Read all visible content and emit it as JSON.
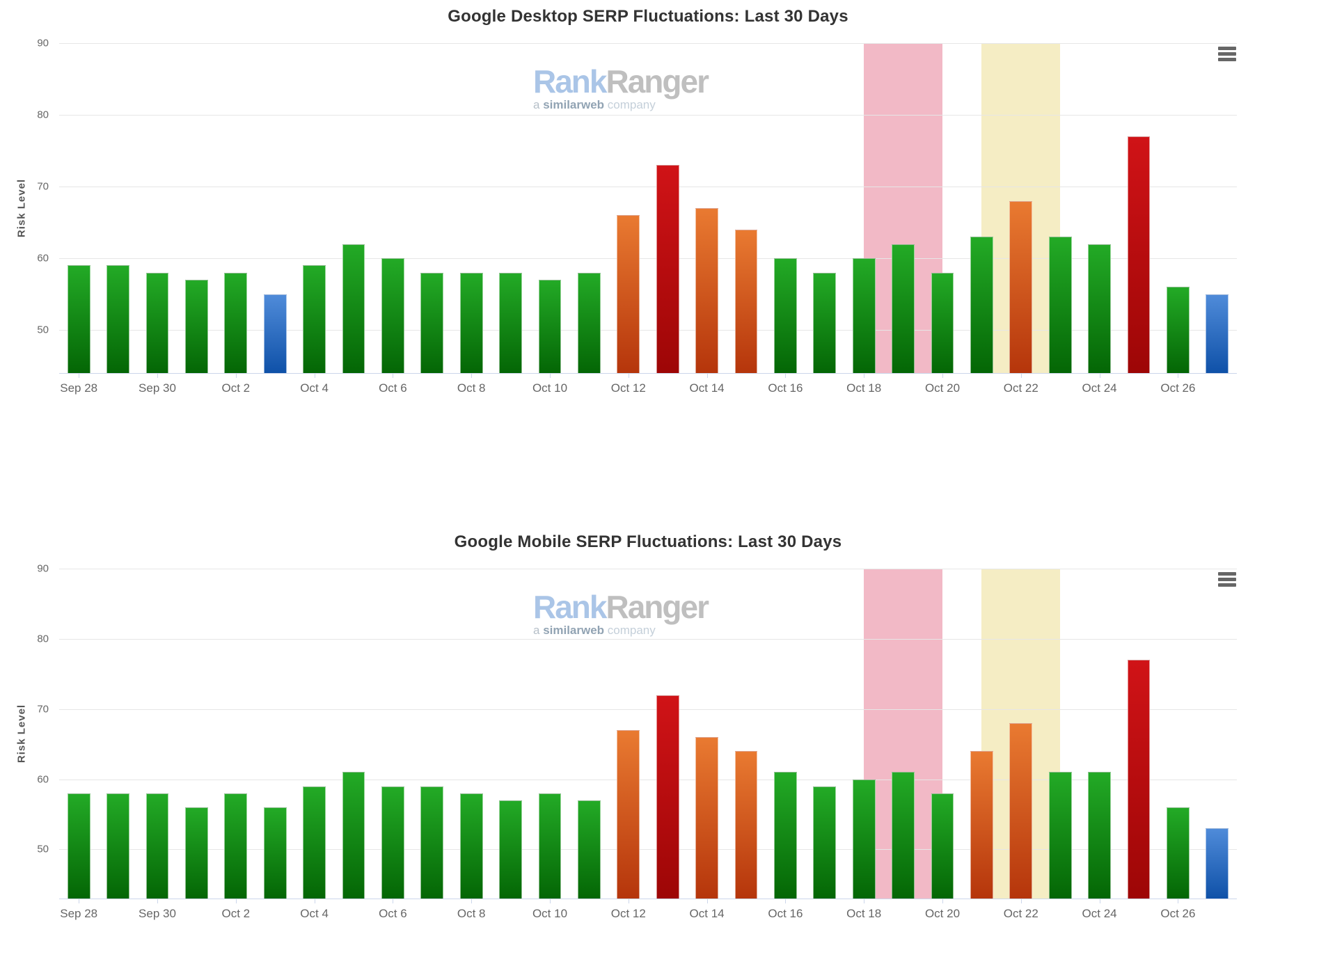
{
  "page": {
    "background": "#ffffff"
  },
  "watermark": {
    "brand_part1": "Rank",
    "brand_part2": "Ranger",
    "tagline_prefix": "a ",
    "tagline_brand": "similarweb",
    "tagline_suffix": " company"
  },
  "icons": {
    "context_menu": "hamburger-menu"
  },
  "colors": {
    "title": "#333333",
    "tick_label": "#666666",
    "axis_line": "#ccd6eb",
    "gridline": "#e6e6e6",
    "bands": {
      "pink": "#f2b9c6",
      "yellow": "#f5edc4"
    },
    "bars": {
      "green": {
        "top": "#23aa26",
        "bottom": "#046605"
      },
      "orange": {
        "top": "#e97a31",
        "bottom": "#b5350b"
      },
      "red": {
        "top": "#d01317",
        "bottom": "#9d0606"
      },
      "blue": {
        "top": "#4f8bd9",
        "bottom": "#0f51a8"
      }
    }
  },
  "chart_data": [
    {
      "type": "bar",
      "title": "Google Desktop SERP Fluctuations: Last 30 Days",
      "xlabel": "",
      "ylabel": "Risk Level",
      "ylim": [
        44,
        90
      ],
      "yticks": [
        50,
        60,
        70,
        80,
        90
      ],
      "grid": true,
      "legend": "none",
      "x_label_every": 2,
      "categories": [
        "Sep 28",
        "Sep 29",
        "Sep 30",
        "Oct 1",
        "Oct 2",
        "Oct 3",
        "Oct 4",
        "Oct 5",
        "Oct 6",
        "Oct 7",
        "Oct 8",
        "Oct 9",
        "Oct 10",
        "Oct 11",
        "Oct 12",
        "Oct 13",
        "Oct 14",
        "Oct 15",
        "Oct 16",
        "Oct 17",
        "Oct 18",
        "Oct 19",
        "Oct 20",
        "Oct 21",
        "Oct 22",
        "Oct 23",
        "Oct 24",
        "Oct 25",
        "Oct 26",
        "Oct 27"
      ],
      "values": [
        59,
        59,
        58,
        57,
        58,
        55,
        59,
        62,
        60,
        58,
        58,
        58,
        57,
        58,
        66,
        73,
        67,
        64,
        60,
        58,
        60,
        62,
        58,
        63,
        68,
        63,
        62,
        77,
        56,
        55
      ],
      "point_colors": [
        "green",
        "green",
        "green",
        "green",
        "green",
        "blue",
        "green",
        "green",
        "green",
        "green",
        "green",
        "green",
        "green",
        "green",
        "orange",
        "red",
        "orange",
        "orange",
        "green",
        "green",
        "green",
        "green",
        "green",
        "green",
        "orange",
        "green",
        "green",
        "red",
        "green",
        "blue"
      ],
      "plot_bands": [
        {
          "name": "pink-band",
          "color": "pink",
          "from": 20.5,
          "to": 22.5
        },
        {
          "name": "yellow-band",
          "color": "yellow",
          "from": 23.5,
          "to": 25.5
        }
      ]
    },
    {
      "type": "bar",
      "title": "Google Mobile SERP Fluctuations: Last 30 Days",
      "xlabel": "",
      "ylabel": "Risk Level",
      "ylim": [
        43,
        90
      ],
      "yticks": [
        50,
        60,
        70,
        80,
        90
      ],
      "grid": true,
      "legend": "none",
      "x_label_every": 2,
      "categories": [
        "Sep 28",
        "Sep 29",
        "Sep 30",
        "Oct 1",
        "Oct 2",
        "Oct 3",
        "Oct 4",
        "Oct 5",
        "Oct 6",
        "Oct 7",
        "Oct 8",
        "Oct 9",
        "Oct 10",
        "Oct 11",
        "Oct 12",
        "Oct 13",
        "Oct 14",
        "Oct 15",
        "Oct 16",
        "Oct 17",
        "Oct 18",
        "Oct 19",
        "Oct 20",
        "Oct 21",
        "Oct 22",
        "Oct 23",
        "Oct 24",
        "Oct 25",
        "Oct 26",
        "Oct 27"
      ],
      "values": [
        58,
        58,
        58,
        56,
        58,
        56,
        59,
        61,
        59,
        59,
        58,
        57,
        58,
        57,
        67,
        72,
        66,
        64,
        61,
        59,
        60,
        61,
        58,
        64,
        68,
        61,
        61,
        77,
        56,
        53
      ],
      "point_colors": [
        "green",
        "green",
        "green",
        "green",
        "green",
        "green",
        "green",
        "green",
        "green",
        "green",
        "green",
        "green",
        "green",
        "green",
        "orange",
        "red",
        "orange",
        "orange",
        "green",
        "green",
        "green",
        "green",
        "green",
        "orange",
        "orange",
        "green",
        "green",
        "red",
        "green",
        "blue"
      ],
      "plot_bands": [
        {
          "name": "pink-band",
          "color": "pink",
          "from": 20.5,
          "to": 22.5
        },
        {
          "name": "yellow-band",
          "color": "yellow",
          "from": 23.5,
          "to": 25.5
        }
      ]
    }
  ]
}
